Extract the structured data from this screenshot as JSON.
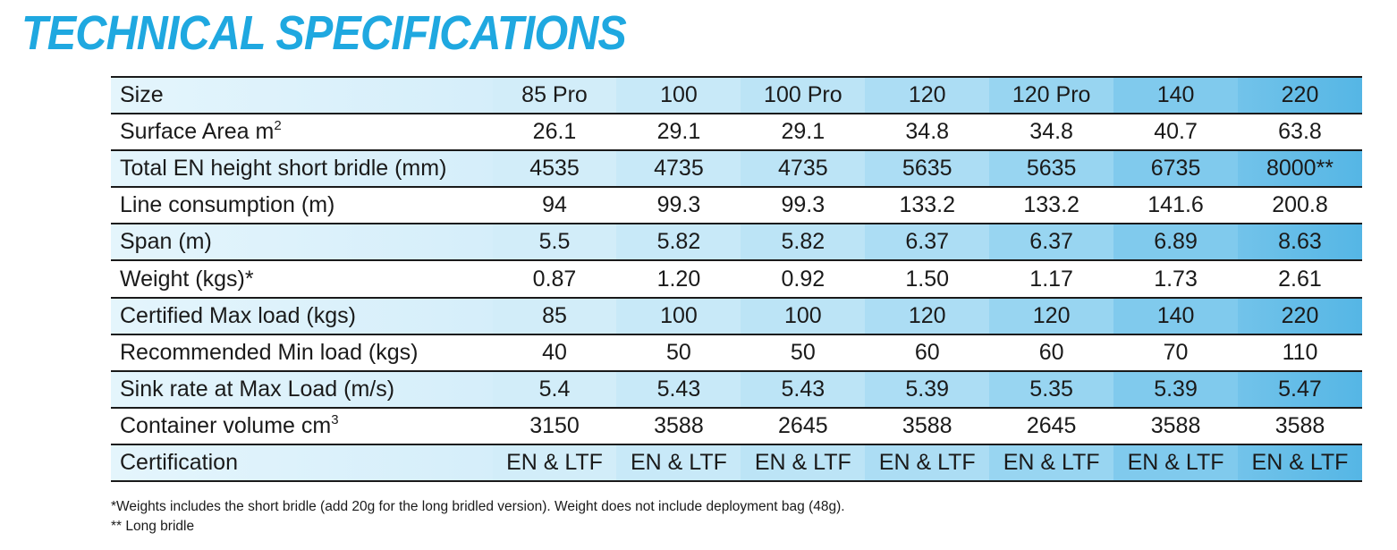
{
  "title": "TECHNICAL SPECIFICATIONS",
  "rows": [
    {
      "label": "Size",
      "sup": "",
      "values": [
        "85 Pro",
        "100",
        "100 Pro",
        "120",
        "120 Pro",
        "140",
        "220"
      ]
    },
    {
      "label": "Surface Area m",
      "sup": "2",
      "values": [
        "26.1",
        "29.1",
        "29.1",
        "34.8",
        "34.8",
        "40.7",
        "63.8"
      ]
    },
    {
      "label": "Total EN height short bridle (mm)",
      "sup": "",
      "values": [
        "4535",
        "4735",
        "4735",
        "5635",
        "5635",
        "6735",
        "8000**"
      ]
    },
    {
      "label": "Line consumption (m)",
      "sup": "",
      "values": [
        "94",
        "99.3",
        "99.3",
        "133.2",
        "133.2",
        "141.6",
        "200.8"
      ]
    },
    {
      "label": "Span (m)",
      "sup": "",
      "values": [
        "5.5",
        "5.82",
        "5.82",
        "6.37",
        "6.37",
        "6.89",
        "8.63"
      ]
    },
    {
      "label": "Weight (kgs)*",
      "sup": "",
      "values": [
        "0.87",
        "1.20",
        "0.92",
        "1.50",
        "1.17",
        "1.73",
        "2.61"
      ]
    },
    {
      "label": "Certified Max load (kgs)",
      "sup": "",
      "values": [
        "85",
        "100",
        "100",
        "120",
        "120",
        "140",
        "220"
      ]
    },
    {
      "label": "Recommended Min load (kgs)",
      "sup": "",
      "values": [
        "40",
        "50",
        "50",
        "60",
        "60",
        "70",
        "110"
      ]
    },
    {
      "label": "Sink rate at Max Load (m/s)",
      "sup": "",
      "values": [
        "5.4",
        "5.43",
        "5.43",
        "5.39",
        "5.35",
        "5.39",
        "5.47"
      ]
    },
    {
      "label": "Container volume cm",
      "sup": "3",
      "values": [
        "3150",
        "3588",
        "2645",
        "3588",
        "2645",
        "3588",
        "3588"
      ]
    },
    {
      "label": "Certification",
      "sup": "",
      "values": [
        "EN & LTF",
        "EN & LTF",
        "EN & LTF",
        "EN & LTF",
        "EN & LTF",
        "EN & LTF",
        "EN & LTF"
      ]
    }
  ],
  "notes": [
    "*Weights includes the short bridle (add 20g for the long bridled version). Weight does not include deployment bag (48g).",
    "** Long bridle"
  ],
  "colors": {
    "title": "#1fa8e0",
    "row_shade_start": "#ddf2fb",
    "row_shade_end": "#55b6e5",
    "rule": "#1a1a1a"
  }
}
